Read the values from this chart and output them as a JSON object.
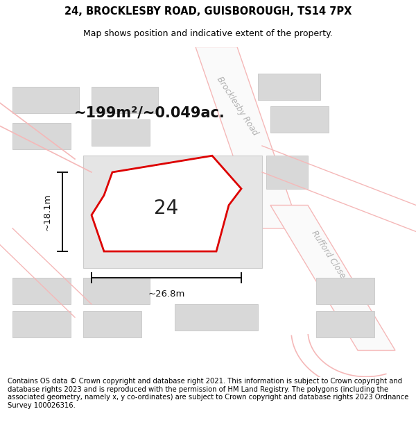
{
  "title_line1": "24, BROCKLESBY ROAD, GUISBOROUGH, TS14 7PX",
  "title_line2": "Map shows position and indicative extent of the property.",
  "area_text": "~199m²/~0.049ac.",
  "number_label": "24",
  "width_label": "~26.8m",
  "height_label": "~18.1m",
  "road_label1": "Brocklesby Road",
  "road_label2": "Rufford Close",
  "copyright_text": "Contains OS data © Crown copyright and database right 2021. This information is subject to Crown copyright and database rights 2023 and is reproduced with the permission of HM Land Registry. The polygons (including the associated geometry, namely x, y co-ordinates) are subject to Crown copyright and database rights 2023 Ordnance Survey 100026316.",
  "bg_color": "#ffffff",
  "map_bg": "#ffffff",
  "road_stroke": "#f5b8b8",
  "building_fill": "#d8d8d8",
  "building_stroke": "#cccccc",
  "plot_stroke": "#dd0000",
  "plot_fill": "#ffffff",
  "dim_color": "#111111",
  "title_fontsize": 10.5,
  "subtitle_fontsize": 9.0,
  "area_fontsize": 15,
  "road_label_fontsize": 8.5,
  "copyright_fontsize": 7.2
}
